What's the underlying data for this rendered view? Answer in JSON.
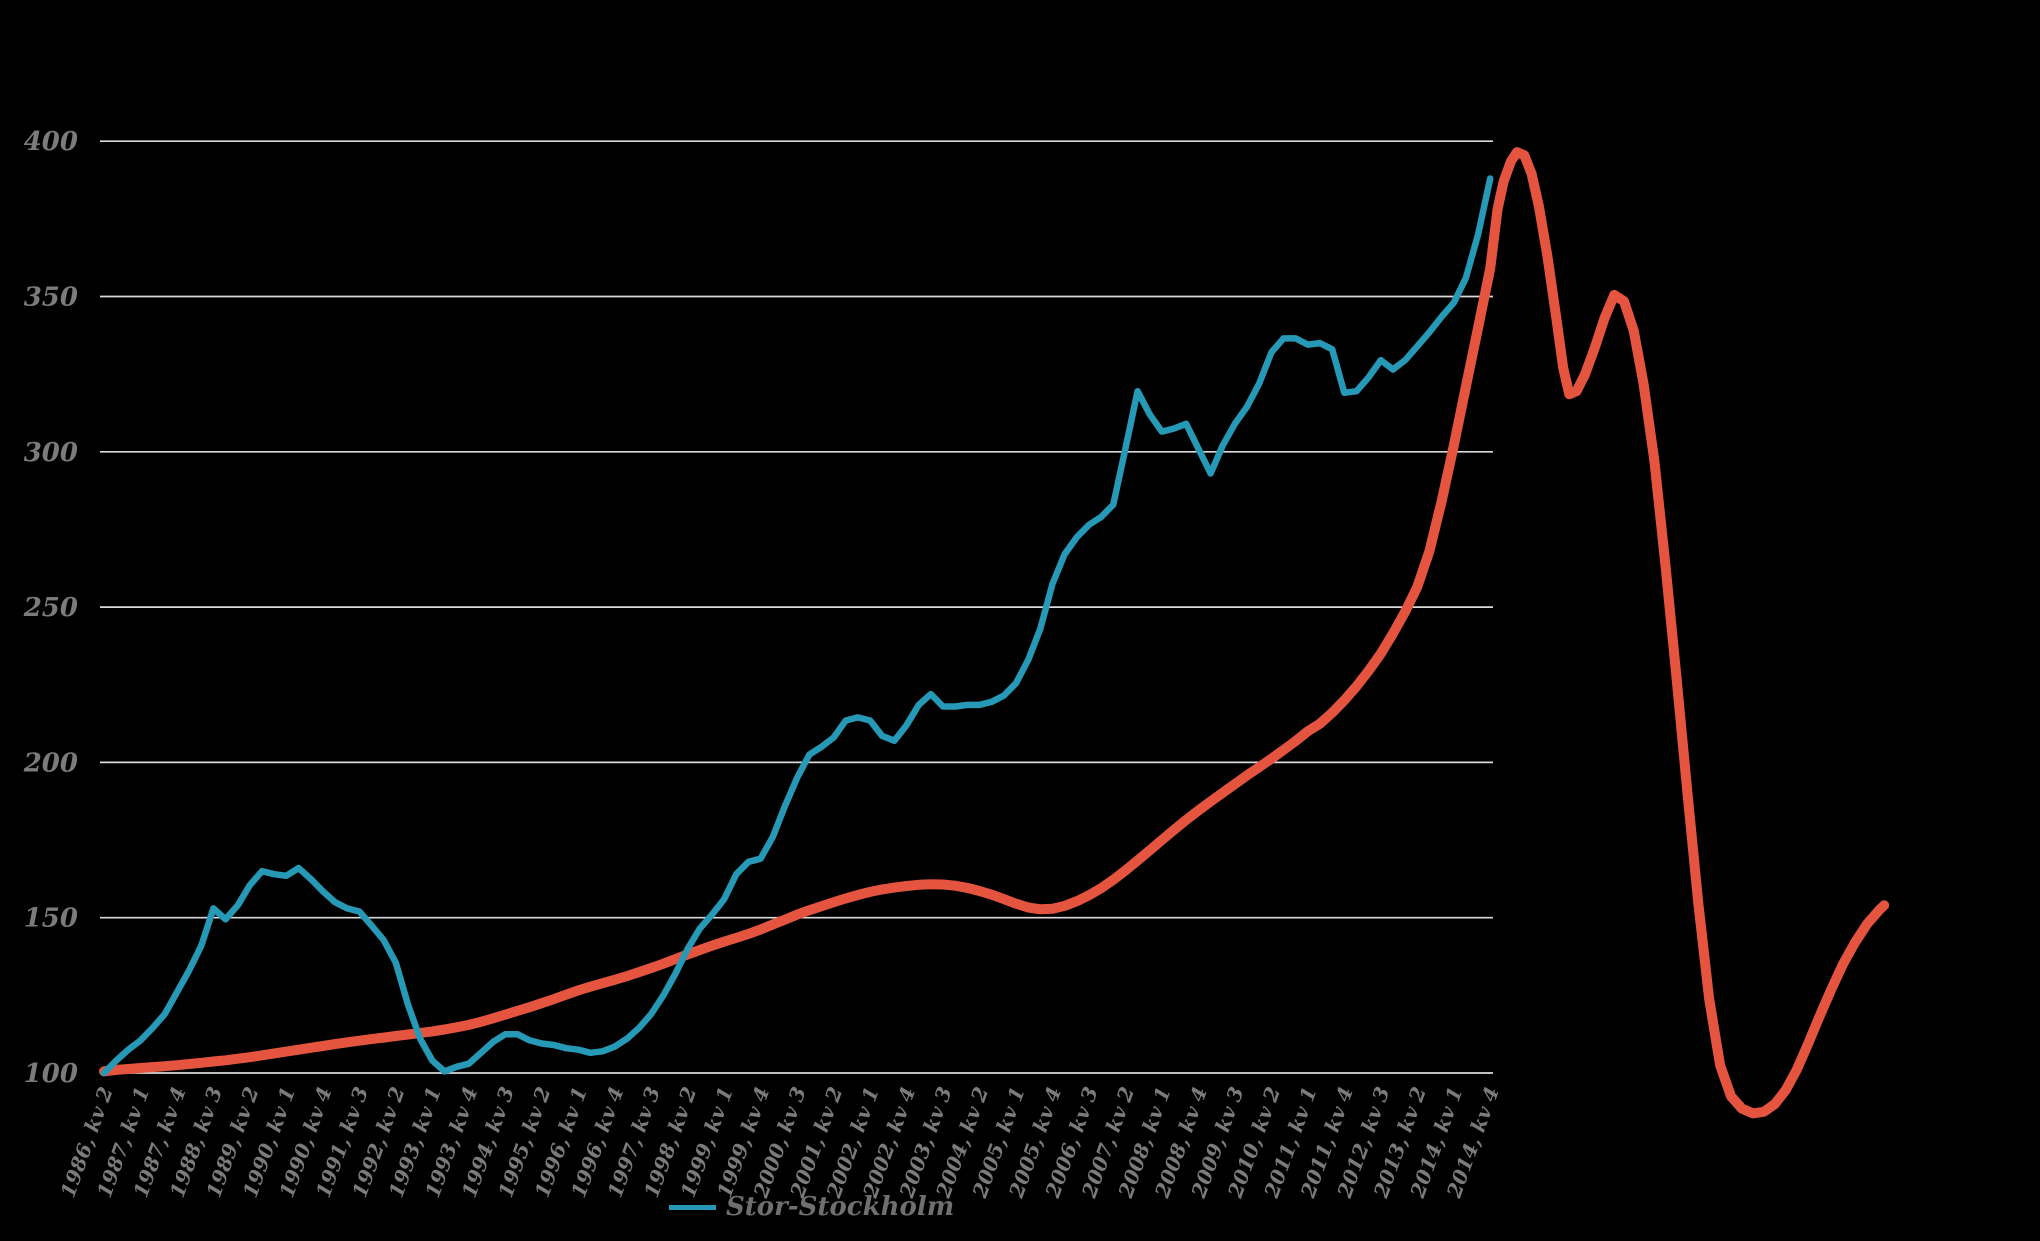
{
  "chart_data": {
    "type": "line",
    "title": "",
    "xlabel": "",
    "ylabel": "",
    "ylim": [
      100,
      400
    ],
    "yticks": [
      400,
      350,
      300,
      250,
      200,
      150,
      100
    ],
    "grid": true,
    "legend_position": "bottom-center",
    "x_unit": "quarter",
    "x_ticks_every_n_points": 3,
    "x_tick_labels": [
      "1986, kv 2",
      "1987, kv 1",
      "1987, kv 4",
      "1988, kv 3",
      "1989, kv 2",
      "1990, kv 1",
      "1990, kv 4",
      "1991, kv 3",
      "1992, kv 2",
      "1993, kv 1",
      "1993, kv 4",
      "1994, kv 3",
      "1995, kv 2",
      "1996, kv 1",
      "1996, kv 4",
      "1997, kv 3",
      "1998, kv 2",
      "1999, kv 1",
      "1999, kv 4",
      "2000, kv 3",
      "2001, kv 2",
      "2002, kv 1",
      "2002, kv 4",
      "2003, kv 3",
      "2004, kv 2",
      "2005, kv 1",
      "2005, kv 4",
      "2006, kv 3",
      "2007, kv 2",
      "2008, kv 1",
      "2008, kv 4",
      "2009, kv 3",
      "2010, kv 2",
      "2011, kv 1",
      "2011, kv 4",
      "2012, kv 3",
      "2013, kv 2",
      "2014, kv 1",
      "2014, kv 4"
    ],
    "series": [
      {
        "name": "Stor-Stockholm",
        "color": "#2699B6",
        "in_legend": true,
        "values": [
          100,
          104,
          107.5,
          110.5,
          114.5,
          119,
          126,
          133,
          141,
          153,
          149.5,
          154,
          160.5,
          165,
          164,
          163.5,
          166,
          162.5,
          158.5,
          155,
          153,
          152,
          147.5,
          142.8,
          135.5,
          122,
          111,
          104,
          100.5,
          102,
          103,
          106.5,
          110,
          112.5,
          112.5,
          110.5,
          109.5,
          109,
          108,
          107.5,
          106.5,
          107,
          108.5,
          111,
          114.5,
          119,
          125,
          132,
          140,
          146.5,
          151,
          156,
          164,
          168,
          169,
          176,
          186,
          195,
          202.5,
          205,
          208,
          213.5,
          214.5,
          213.5,
          208.5,
          207,
          212,
          218.5,
          222,
          218,
          218,
          218.5,
          218.5,
          219.5,
          221.5,
          225.5,
          233,
          243,
          257.5,
          267,
          272.5,
          276.5,
          279,
          283,
          301,
          319.5,
          312,
          306.5,
          307.5,
          309,
          301,
          293,
          302,
          309,
          314.5,
          322,
          332,
          336.5,
          336.5,
          334.5,
          335,
          333,
          319,
          319.5,
          324,
          329.5,
          326.5,
          329.5,
          334,
          338.5,
          343.5,
          348,
          356,
          370,
          388
        ]
      },
      {
        "name": "",
        "color": "#E4543F",
        "in_legend": false,
        "values": [
          100.5,
          101,
          101.3,
          101.6,
          101.9,
          102.2,
          102.5,
          102.9,
          103.3,
          103.7,
          104.1,
          104.6,
          105.1,
          105.7,
          106.3,
          106.9,
          107.5,
          108.1,
          108.7,
          109.3,
          109.9,
          110.4,
          110.9,
          111.4,
          111.9,
          112.4,
          112.9,
          113.4,
          114,
          114.7,
          115.5,
          116.5,
          117.6,
          118.8,
          120,
          121.2,
          122.5,
          123.8,
          125.2,
          126.6,
          127.8,
          128.9,
          130,
          131.2,
          132.5,
          133.8,
          135.2,
          136.7,
          138.2,
          139.6,
          141,
          142.3,
          143.5,
          144.8,
          146.2,
          147.8,
          149.4,
          151,
          152.4,
          153.7,
          155,
          156.2,
          157.3,
          158.3,
          159.1,
          159.7,
          160.2,
          160.6,
          160.8,
          160.7,
          160.3,
          159.6,
          158.6,
          157.4,
          156,
          154.5,
          153.3,
          152.7,
          152.9,
          153.8,
          155.3,
          157.2,
          159.5,
          162.2,
          165.2,
          168.4,
          171.7,
          175,
          178.3,
          181.5,
          184.5,
          187.4,
          190.2,
          193,
          195.8,
          198.5,
          201.2,
          204,
          206.9,
          210,
          212.5,
          216,
          220,
          224.5,
          229.5,
          235,
          241.5,
          248.5,
          256.5,
          268,
          284,
          302,
          321,
          340,
          359
        ],
        "extension_points": [
          [
            114.6,
            378
          ],
          [
            115.1,
            387
          ],
          [
            115.7,
            393.5
          ],
          [
            116.2,
            396.5
          ],
          [
            116.8,
            395.5
          ],
          [
            117.4,
            389.5
          ],
          [
            118,
            379
          ],
          [
            118.7,
            363
          ],
          [
            119.4,
            344
          ],
          [
            120,
            327
          ],
          [
            120.5,
            318.5
          ],
          [
            121.1,
            319.5
          ],
          [
            121.8,
            325
          ],
          [
            122.6,
            333.5
          ],
          [
            123.4,
            343
          ],
          [
            124.2,
            350.5
          ],
          [
            125,
            348.5
          ],
          [
            125.8,
            339
          ],
          [
            126.6,
            322
          ],
          [
            127.5,
            297
          ],
          [
            128.4,
            264
          ],
          [
            129.3,
            228
          ],
          [
            130.2,
            191
          ],
          [
            131.1,
            155
          ],
          [
            132,
            124
          ],
          [
            132.9,
            102.5
          ],
          [
            133.8,
            92.5
          ],
          [
            134.7,
            88.5
          ],
          [
            135.6,
            87
          ],
          [
            136.5,
            87.5
          ],
          [
            137.4,
            90
          ],
          [
            138.3,
            94.5
          ],
          [
            139.2,
            101
          ],
          [
            140.1,
            109
          ],
          [
            141,
            117.5
          ],
          [
            142,
            126.5
          ],
          [
            143,
            135
          ],
          [
            144,
            142
          ],
          [
            145,
            148
          ],
          [
            146,
            152.5
          ],
          [
            146.4,
            154
          ]
        ]
      }
    ],
    "legend": {
      "entries": [
        {
          "label": "Stor-Stockholm",
          "color": "#2699B6"
        }
      ]
    },
    "colors": {
      "background": "#000000",
      "gridline": "#DADADA",
      "tick_labels": "#7B7B7B",
      "legend_text": "#6F6F6F"
    }
  }
}
